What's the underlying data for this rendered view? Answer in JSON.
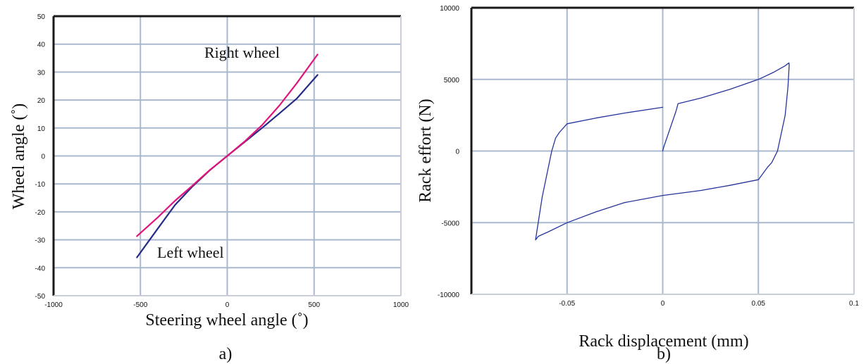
{
  "colors": {
    "grid": "#a9b8cf",
    "left_wheel": "#252b86",
    "right_wheel": "#e0147a",
    "hysteresis": "#26359a",
    "frame": "#1a1a1a"
  },
  "chart_data": [
    {
      "panel_label": "a)",
      "type": "line",
      "xlabel": "Steering wheel angle (˚)",
      "ylabel": "Wheel angle (˚)",
      "xlim": [
        -1000,
        1000
      ],
      "ylim": [
        -50,
        50
      ],
      "x_ticks": [
        -1000,
        -500,
        0,
        500,
        1000
      ],
      "y_ticks": [
        -50,
        -40,
        -30,
        -20,
        -10,
        0,
        10,
        20,
        30,
        40,
        50
      ],
      "x_tick_labels": [
        "-1000",
        "-500",
        "0",
        "500",
        "1000"
      ],
      "y_tick_labels": [
        "-50",
        "-40",
        "-30",
        "-20",
        "-10",
        "0",
        "10",
        "20",
        "30",
        "40",
        "50"
      ],
      "grid": true,
      "annotations": [
        "Right wheel",
        "Left wheel"
      ],
      "series": [
        {
          "label": "Left wheel",
          "color_key": "left_wheel",
          "x": [
            -520,
            -400,
            -300,
            -200,
            -100,
            0,
            100,
            200,
            300,
            400,
            520
          ],
          "y": [
            -36.3,
            -26.0,
            -17.5,
            -10.9,
            -5.1,
            0,
            5.0,
            10.0,
            15.2,
            20.5,
            29.0
          ]
        },
        {
          "label": "Right wheel",
          "color_key": "right_wheel",
          "x": [
            -520,
            -400,
            -300,
            -200,
            -100,
            0,
            100,
            200,
            300,
            400,
            520
          ],
          "y": [
            -28.7,
            -22.0,
            -16.0,
            -10.6,
            -5.0,
            0,
            5.2,
            11.0,
            18.0,
            26.0,
            36.3
          ]
        }
      ]
    },
    {
      "panel_label": "b)",
      "type": "line",
      "xlabel": "Rack displacement (mm)",
      "ylabel": "Rack effort (N)",
      "xlim": [
        -0.1,
        0.1
      ],
      "ylim": [
        -10000,
        10000
      ],
      "x_ticks": [
        -0.05,
        0,
        0.05,
        0.1
      ],
      "y_ticks": [
        -10000,
        -5000,
        0,
        5000,
        10000
      ],
      "x_tick_labels": [
        "-0.05",
        "0",
        "0.05",
        "0.1"
      ],
      "y_tick_labels": [
        "-10000",
        "-5000",
        "0",
        "5000",
        "10000"
      ],
      "grid": true,
      "series": [
        {
          "color_key": "hysteresis",
          "x": [
            0,
            0.0006,
            0.007,
            0.008,
            0.02,
            0.035,
            0.05,
            0.058,
            0.064,
            0.066,
            0.0661,
            0.0655,
            0.064,
            0.06,
            0.057,
            0.055,
            0.05,
            0.035,
            0.02,
            0.0,
            -0.02,
            -0.035,
            -0.05,
            -0.06,
            -0.065,
            -0.0665,
            -0.066,
            -0.063,
            -0.058,
            -0.056,
            -0.054,
            -0.05,
            -0.035,
            -0.02,
            0.0
          ],
          "y": [
            0,
            300,
            2800,
            3300,
            3700,
            4300,
            5000,
            5500,
            5950,
            6150,
            6000,
            4500,
            2500,
            0,
            -800,
            -1100,
            -2000,
            -2400,
            -2750,
            -3100,
            -3600,
            -4250,
            -5000,
            -5650,
            -5950,
            -6200,
            -5800,
            -3200,
            0,
            900,
            1300,
            1900,
            2300,
            2650,
            3050
          ]
        }
      ]
    }
  ]
}
